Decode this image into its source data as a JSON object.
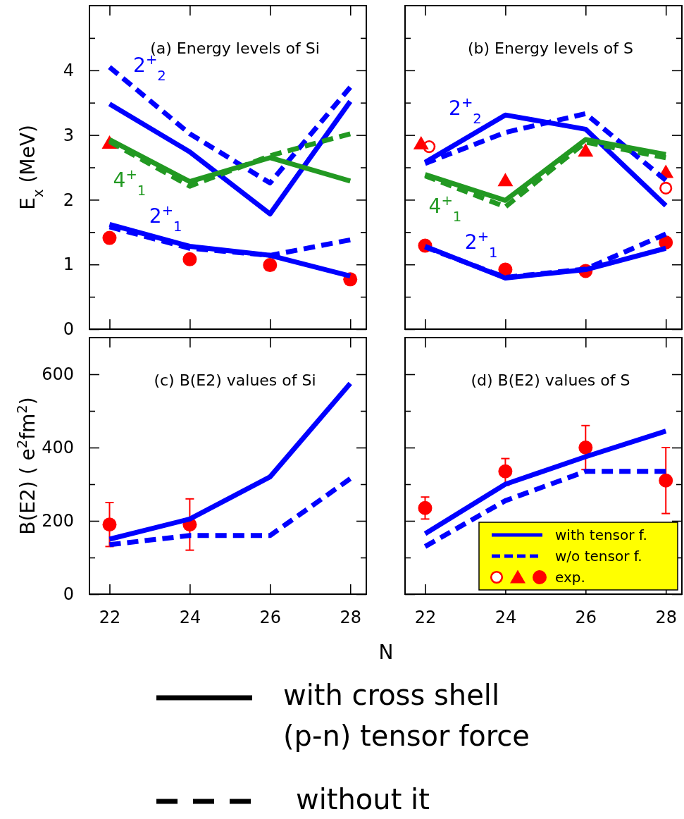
{
  "chart_data": [
    {
      "type": "line",
      "title": "(a) Energy levels of Si",
      "ylabel": "E$_{x}$ (MeV)",
      "x": [
        22,
        24,
        26,
        28
      ],
      "xlim": [
        21.5,
        28.4
      ],
      "xticks": [
        22,
        24,
        26,
        28
      ],
      "ylim": [
        0,
        5
      ],
      "yticks": [
        0,
        {
          "value": 0.5,
          "label": null
        },
        1,
        {
          "value": 1.5,
          "label": null
        },
        2,
        {
          "value": 2.5,
          "label": null
        },
        3,
        {
          "value": 3.5,
          "label": null
        },
        4,
        {
          "value": 4.5,
          "label": null
        }
      ],
      "tick_labels": "y",
      "series": [
        {
          "name": "2$^{+}$$_{2}$",
          "color": "#0000ff",
          "line_style": "solid",
          "marker": "none",
          "values": [
            3.48,
            2.74,
            1.78,
            3.52
          ]
        },
        {
          "color": "#0000ff",
          "line_style": "dashed",
          "marker": "none",
          "values": [
            4.05,
            3.02,
            2.26,
            3.74
          ]
        },
        {
          "name": "4$^{+}$$_{1}$",
          "color": "#229922",
          "line_style": "solid",
          "marker": "none",
          "values": [
            2.93,
            2.28,
            2.65,
            2.29
          ]
        },
        {
          "color": "#229922",
          "line_style": "dashed",
          "marker": "none",
          "values": [
            2.9,
            2.21,
            2.68,
            3.02
          ]
        },
        {
          "name": "2$^{+}$$_{1}$",
          "color": "#0000ff",
          "line_style": "solid",
          "marker": "none",
          "values": [
            1.62,
            1.28,
            1.14,
            0.82
          ]
        },
        {
          "color": "#0000ff",
          "line_style": "dashed",
          "marker": "none",
          "values": [
            1.58,
            1.25,
            1.14,
            1.38
          ]
        },
        {
          "type": "scatter",
          "color": "#ff0000",
          "marker": "circle",
          "values": [
            1.41,
            1.08,
            0.99,
            0.77
          ]
        },
        {
          "type": "scatter",
          "color": "#ff0000",
          "marker": "triangle",
          "x": [
            22
          ],
          "values": [
            2.88
          ]
        }
      ]
    },
    {
      "type": "line",
      "title": "(b) Energy levels of S",
      "x": [
        22,
        24,
        26,
        28
      ],
      "xlim": [
        21.5,
        28.4
      ],
      "xticks": [
        22,
        24,
        26,
        28
      ],
      "ylim": [
        0,
        5
      ],
      "yticks": [
        0,
        {
          "value": 0.5,
          "label": null
        },
        1,
        {
          "value": 1.5,
          "label": null
        },
        2,
        {
          "value": 2.5,
          "label": null
        },
        3,
        {
          "value": 3.5,
          "label": null
        },
        4,
        {
          "value": 4.5,
          "label": null
        }
      ],
      "tick_labels": false,
      "series": [
        {
          "name": "2$^{+}$$_{2}$",
          "color": "#0000ff",
          "line_style": "solid",
          "marker": "none",
          "values": [
            2.58,
            3.31,
            3.09,
            1.91
          ]
        },
        {
          "color": "#0000ff",
          "line_style": "dashed",
          "marker": "none",
          "values": [
            2.56,
            3.04,
            3.33,
            2.3
          ]
        },
        {
          "name": "4$^{+}$$_{1}$",
          "color": "#229922",
          "line_style": "solid",
          "marker": "none",
          "values": [
            2.39,
            1.99,
            2.93,
            2.7
          ]
        },
        {
          "color": "#229922",
          "line_style": "dashed",
          "marker": "none",
          "values": [
            2.37,
            1.89,
            2.89,
            2.65
          ]
        },
        {
          "name": "2$^{+}$$_{1}$",
          "color": "#0000ff",
          "line_style": "solid",
          "marker": "none",
          "values": [
            1.28,
            0.79,
            0.92,
            1.25
          ]
        },
        {
          "color": "#0000ff",
          "line_style": "dashed",
          "marker": "none",
          "values": [
            1.27,
            0.8,
            0.93,
            1.47
          ]
        },
        {
          "type": "scatter",
          "color": "#ff0000",
          "marker": "circle",
          "values": [
            1.29,
            0.92,
            0.9,
            1.34
          ]
        },
        {
          "type": "scatter",
          "color": "#ff0000",
          "marker": "open circle",
          "x": [
            22.1,
            28
          ],
          "values": [
            2.82,
            2.18
          ]
        },
        {
          "type": "scatter",
          "color": "#ff0000",
          "marker": "triangle",
          "x": [
            21.9,
            24,
            26,
            28
          ],
          "values": [
            2.87,
            2.3,
            2.76,
            2.43
          ]
        }
      ]
    },
    {
      "type": "line",
      "title": "(c) B(E2) values of Si",
      "ylabel": "B(E2) ( e$^{2}$fm$^{2}$)",
      "xlabel": "N",
      "x": [
        22,
        24,
        26,
        28
      ],
      "xlim": [
        21.5,
        28.4
      ],
      "xticks": [
        22,
        24,
        26,
        28
      ],
      "ylim": [
        0,
        700
      ],
      "yticks": [
        0,
        {
          "value": 100,
          "label": null
        },
        200,
        {
          "value": 300,
          "label": null
        },
        400,
        {
          "value": 500,
          "label": null
        },
        600
      ],
      "series": [
        {
          "color": "#0000ff",
          "line_style": "solid",
          "marker": "none",
          "values": [
            150,
            205,
            320,
            575
          ]
        },
        {
          "color": "#0000ff",
          "line_style": "dashed",
          "marker": "none",
          "values": [
            135,
            160,
            160,
            315
          ]
        },
        {
          "type": "scatter",
          "color": "#ff0000",
          "marker": "circle",
          "x": [
            22,
            24
          ],
          "values": [
            190,
            190
          ],
          "errors": [
            [
              130,
              250
            ],
            [
              120,
              260
            ]
          ]
        }
      ]
    },
    {
      "type": "line",
      "title": "(d) B(E2) values of S",
      "x": [
        22,
        24,
        26,
        28
      ],
      "xlim": [
        21.5,
        28.4
      ],
      "xticks": [
        22,
        24,
        26,
        28
      ],
      "ylim": [
        0,
        700
      ],
      "yticks": [
        0,
        {
          "value": 100,
          "label": null
        },
        200,
        {
          "value": 300,
          "label": null
        },
        400,
        {
          "value": 500,
          "label": null
        },
        600
      ],
      "tick_labels": "x",
      "legend": "bottom right",
      "series": [
        {
          "name": "with tensor f.",
          "color": "#0000ff",
          "line_style": "solid",
          "marker": "none",
          "values": [
            165,
            300,
            375,
            445
          ]
        },
        {
          "name": "w/o tensor f.",
          "color": "#0000ff",
          "line_style": "dashed",
          "marker": "none",
          "values": [
            130,
            255,
            335,
            335
          ]
        },
        {
          "name": "exp.",
          "type": "scatter",
          "color": "#ff0000",
          "marker": "circle",
          "values": [
            235,
            335,
            400,
            310
          ],
          "errors": [
            [
              205,
              265
            ],
            [
              297,
              370
            ],
            [
              340,
              460
            ],
            [
              220,
              400
            ]
          ]
        }
      ]
    },
    {
      "type": "other",
      "annotations": [
        "with cross shell",
        "(p-n) tensor force",
        "without it"
      ]
    }
  ]
}
